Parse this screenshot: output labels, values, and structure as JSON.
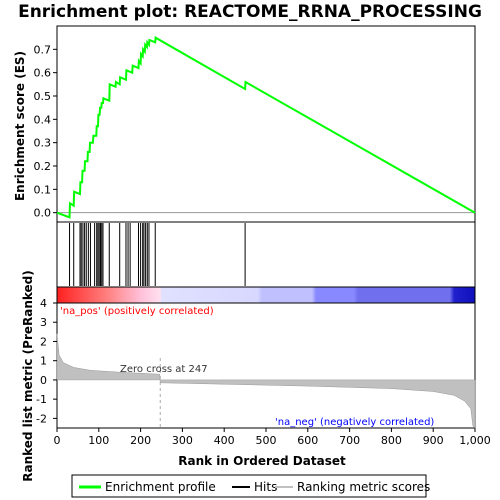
{
  "chart_data": {
    "type": "line",
    "title": "Enrichment plot: REACTOME_RRNA_PROCESSING",
    "top_panel": {
      "ylabel": "Enrichment score (ES)",
      "ylim": [
        -0.04,
        0.8
      ],
      "yticks": [
        "0.0",
        "0.1",
        "0.2",
        "0.3",
        "0.4",
        "0.5",
        "0.6",
        "0.7"
      ],
      "ytick_values": [
        0.0,
        0.1,
        0.2,
        0.3,
        0.4,
        0.5,
        0.6,
        0.7
      ],
      "es_line_color": "#00ff00",
      "series": [
        {
          "x": [
            0,
            30,
            31,
            40,
            41,
            55,
            56,
            60,
            61,
            66,
            67,
            73,
            74,
            78,
            79,
            86,
            87,
            94,
            95,
            98,
            99,
            102,
            103,
            106,
            107,
            110,
            111,
            125,
            126,
            140,
            141,
            150,
            151,
            165,
            166,
            180,
            181,
            195,
            196,
            200,
            201,
            205,
            206,
            210,
            211,
            215,
            216,
            220,
            221,
            235,
            236,
            450,
            451,
            1000
          ],
          "y": [
            0.0,
            -0.02,
            0.04,
            0.03,
            0.09,
            0.08,
            0.13,
            0.13,
            0.18,
            0.18,
            0.22,
            0.22,
            0.26,
            0.26,
            0.3,
            0.3,
            0.33,
            0.33,
            0.37,
            0.37,
            0.42,
            0.42,
            0.45,
            0.45,
            0.47,
            0.47,
            0.49,
            0.48,
            0.55,
            0.54,
            0.56,
            0.55,
            0.58,
            0.57,
            0.61,
            0.6,
            0.63,
            0.62,
            0.65,
            0.64,
            0.68,
            0.67,
            0.7,
            0.69,
            0.72,
            0.71,
            0.73,
            0.72,
            0.74,
            0.73,
            0.75,
            0.53,
            0.56,
            0.0
          ]
        }
      ]
    },
    "hits": [
      30,
      40,
      55,
      58,
      62,
      66,
      70,
      75,
      80,
      90,
      95,
      98,
      101,
      104,
      107,
      110,
      125,
      150,
      165,
      170,
      175,
      195,
      200,
      205,
      208,
      212,
      216,
      220,
      235,
      450
    ],
    "heatmap": {
      "pos_color": "#ff0000",
      "neg_color": "#0000ff"
    },
    "bottom_panel": {
      "ylabel": "Ranked list metric (PreRanked)",
      "ylim": [
        -2.5,
        4
      ],
      "yticks": [
        "4",
        "3",
        "2",
        "1",
        "0",
        "-1",
        "-2"
      ],
      "ytick_values": [
        4,
        3,
        2,
        1,
        0,
        -1,
        -2
      ],
      "metric_color": "#c0c0c0",
      "metric_profile": {
        "x": [
          0,
          5,
          15,
          40,
          80,
          150,
          246,
          247,
          400,
          600,
          800,
          900,
          950,
          975,
          990,
          995,
          1000
        ],
        "y": [
          2.4,
          1.3,
          0.9,
          0.65,
          0.5,
          0.4,
          0.3,
          -0.15,
          -0.22,
          -0.32,
          -0.45,
          -0.6,
          -0.8,
          -1.1,
          -1.5,
          -2.4,
          -2.5
        ]
      },
      "zero_cross_label": "Zero cross at 247",
      "zero_cross": 247,
      "pos_label": "'na_pos' (positively correlated)",
      "neg_label": "'na_neg' (negatively correlated)",
      "pos_label_color": "#ff0000",
      "neg_label_color": "#0000ff"
    },
    "xlabel": "Rank in Ordered Dataset",
    "xlim": [
      0,
      1000
    ],
    "xticks": [
      "0",
      "100",
      "200",
      "300",
      "400",
      "500",
      "600",
      "700",
      "800",
      "900",
      "1,000"
    ],
    "xtick_values": [
      0,
      100,
      200,
      300,
      400,
      500,
      600,
      700,
      800,
      900,
      1000
    ],
    "legend": {
      "placement": "bottom",
      "items": [
        {
          "label": "Enrichment profile",
          "color": "#00ff00"
        },
        {
          "label": "Hits",
          "color": "#000000"
        },
        {
          "label": "Ranking metric scores",
          "color": "#c0c0c0"
        }
      ]
    }
  }
}
